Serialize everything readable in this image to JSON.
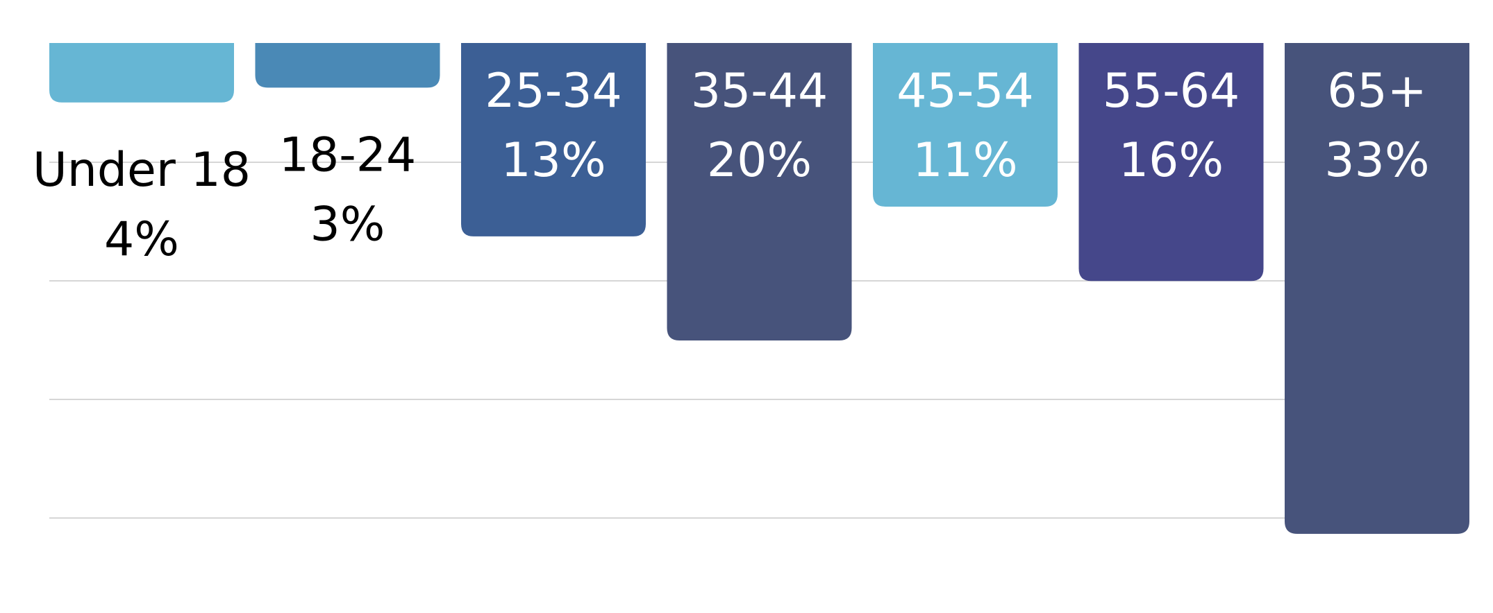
{
  "chart_data": {
    "type": "bar",
    "orientation": "downward",
    "categories": [
      "Under 18",
      "18-24",
      "25-34",
      "35-44",
      "45-54",
      "55-64",
      "65+"
    ],
    "values": [
      4,
      3,
      13,
      20,
      11,
      16,
      33
    ],
    "value_labels": [
      "4%",
      "3%",
      "13%",
      "20%",
      "11%",
      "16%",
      "33%"
    ],
    "colors": [
      "#66b6d4",
      "#4a89b6",
      "#3c5f95",
      "#47537b",
      "#66b6d4",
      "#45478a",
      "#47537b"
    ],
    "label_colors": [
      "#000000",
      "#000000",
      "#ffffff",
      "#ffffff",
      "#ffffff",
      "#ffffff",
      "#ffffff"
    ],
    "label_placement": [
      "outside",
      "outside",
      "inside",
      "inside",
      "inside",
      "inside",
      "inside"
    ],
    "grid": true,
    "grid_color": "#c8c8c8",
    "title": "",
    "xlabel": "",
    "ylabel": ""
  }
}
